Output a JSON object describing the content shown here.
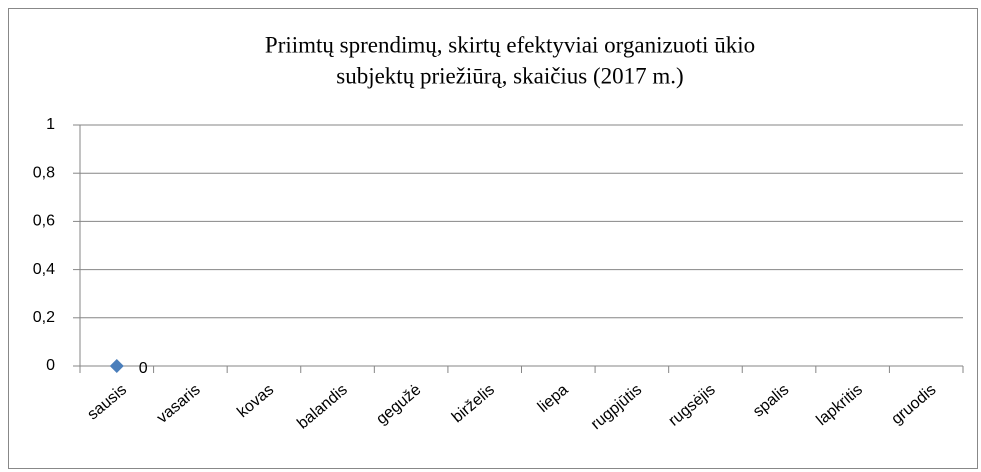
{
  "chart_data": {
    "type": "line",
    "title": [
      "Priimtų sprendimų, skirtų efektyviai organizuoti ūkio",
      "subjektų priežiūrą, skaičius (2017 m.)"
    ],
    "categories": [
      "sausis",
      "vasaris",
      "kovas",
      "balandis",
      "gegužė",
      "birželis",
      "liepa",
      "rugpjūtis",
      "rugsėjis",
      "spalis",
      "lapkritis",
      "gruodis"
    ],
    "series": [
      {
        "color": "#4a7ebb",
        "values": [
          0,
          null,
          null,
          null,
          null,
          null,
          null,
          null,
          null,
          null,
          null,
          null
        ]
      }
    ],
    "ylim": [
      0,
      1
    ],
    "yticks": [
      0,
      {
        "value": 0.2,
        "label": "0,2"
      },
      {
        "value": 0.4,
        "label": "0,4"
      },
      {
        "value": 0.6,
        "label": "0,6"
      },
      {
        "value": 0.8,
        "label": "0,8"
      },
      1
    ],
    "grid": true
  }
}
